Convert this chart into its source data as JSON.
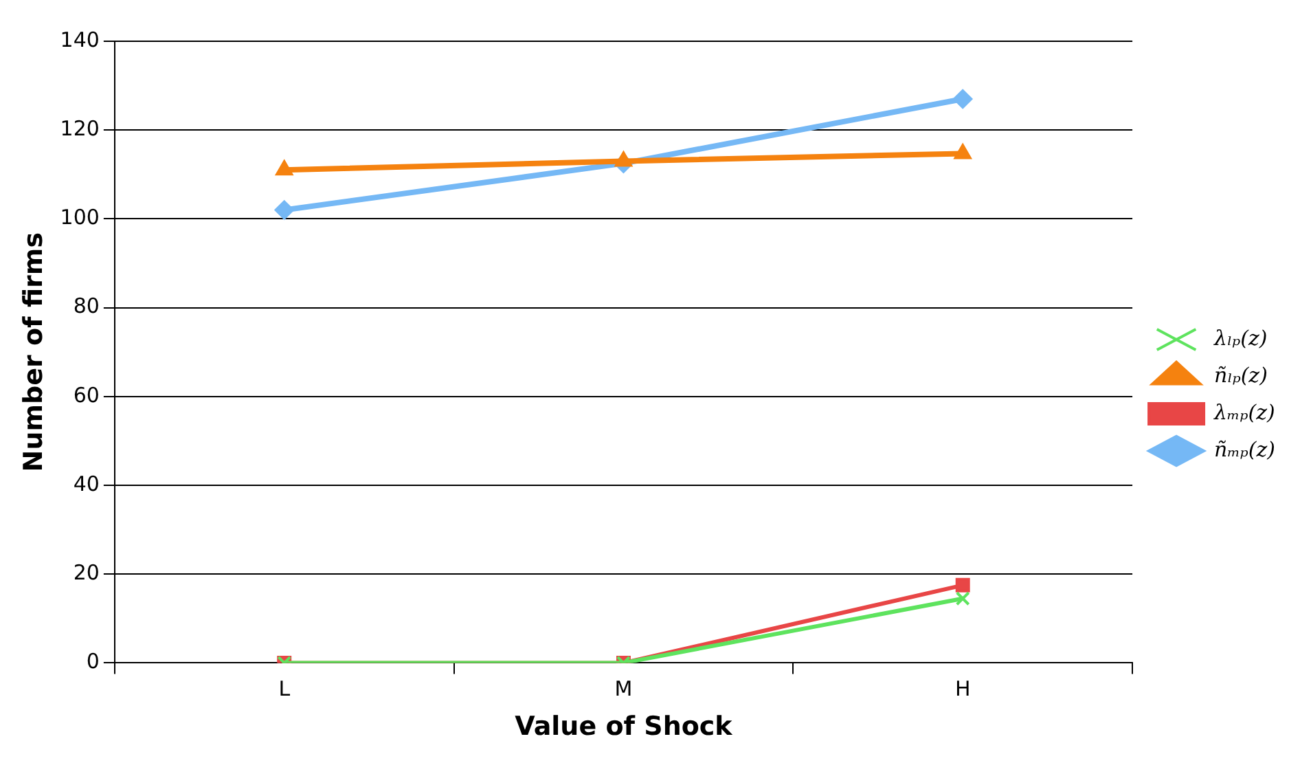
{
  "chart_data": {
    "type": "line",
    "xlabel": "Value of Shock",
    "ylabel": "Number of firms",
    "categories": [
      "L",
      "M",
      "H"
    ],
    "series": [
      {
        "name": "ñₘₚ(z)",
        "color": "#75b8f5",
        "values": [
          102,
          112.5,
          127
        ],
        "marker": "diamond"
      },
      {
        "name": "λₘₚ(z)",
        "color": "#e84646",
        "values": [
          0,
          0,
          17.5
        ],
        "marker": "square"
      },
      {
        "name": "ñₗₚ(z)",
        "color": "#f5820f",
        "values": [
          111,
          113,
          114.7
        ],
        "marker": "triangle"
      },
      {
        "name": "λₗₚ(z)",
        "color": "#5ee35e",
        "values": [
          0,
          0,
          14.5
        ],
        "marker": "cross"
      }
    ],
    "ylim": [
      0,
      140
    ],
    "yticks": [
      0,
      20,
      40,
      60,
      80,
      100,
      120,
      140
    ],
    "grid": "y",
    "legend": "right",
    "line_style": "solid"
  }
}
